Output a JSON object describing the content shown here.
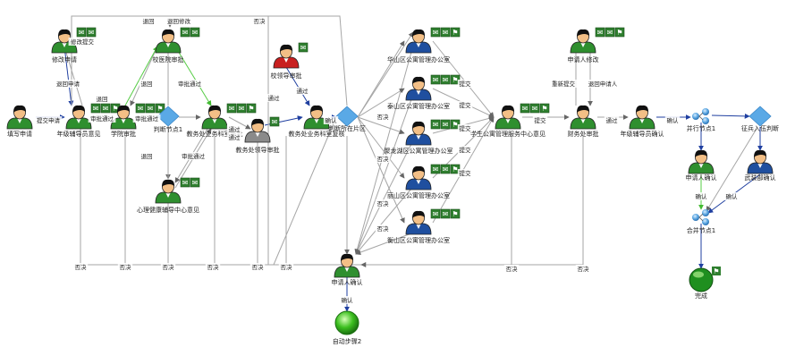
{
  "colors": {
    "edge": "#a6a6a6",
    "edge_green": "#55cc44",
    "edge_blue": "#1f3fa0",
    "skin": "#f3bf86",
    "hair": "#111111",
    "shirt_green": "#2f8f2f",
    "shirt_blue": "#1f4f9f",
    "shirt_red": "#c81f1f",
    "shirt_gray": "#8a8a8a",
    "diamond": "#5aa9e6",
    "badge": "#2f7f2f",
    "done_ball": "#1f8f1f",
    "text": "#222222"
  },
  "nodes": [
    {
      "id": "n_fill",
      "label": "填写申请",
      "icon": "person-green-icon",
      "badges": 0
    },
    {
      "id": "n_edit",
      "label": "修改申请",
      "icon": "person-green-icon",
      "badges": 2
    },
    {
      "id": "n_tutor",
      "label": "年级辅导员意见",
      "icon": "person-green-icon",
      "badges": 3
    },
    {
      "id": "n_college",
      "label": "学院审批",
      "icon": "person-green-icon",
      "badges": 3
    },
    {
      "id": "n_school",
      "label": "校医院审批",
      "icon": "person-green-icon",
      "badges": 2
    },
    {
      "id": "n_judge1",
      "label": "判断节点1",
      "icon": "decision-diamond-icon",
      "badges": 0
    },
    {
      "id": "n_edu",
      "label": "教务处业务科室审批",
      "icon": "person-green-icon",
      "badges": 3
    },
    {
      "id": "n_psy",
      "label": "心理健康辅导中心意见",
      "icon": "person-green-icon",
      "badges": 2
    },
    {
      "id": "n_eduleader",
      "label": "教务处领导审批",
      "icon": "person-gray-icon",
      "badges": 1
    },
    {
      "id": "n_schoolleader",
      "label": "校领导审批",
      "icon": "person-red-icon",
      "badges": 1
    },
    {
      "id": "n_edu2",
      "label": "教务处业务科室复核",
      "icon": "person-green-icon",
      "badges": 0
    },
    {
      "id": "n_judge_dorm",
      "label": "判断所在片区",
      "icon": "decision-diamond-icon",
      "badges": 0
    },
    {
      "id": "n_huashan",
      "label": "华山区公寓管理办公室",
      "icon": "person-blue-icon",
      "badges": 3
    },
    {
      "id": "n_taishan",
      "label": "泰山区公寓管理办公室",
      "icon": "person-blue-icon",
      "badges": 3
    },
    {
      "id": "n_julong",
      "label": "聚龙湖区公寓管理办公室",
      "icon": "person-blue-icon",
      "badges": 3
    },
    {
      "id": "n_lishan",
      "label": "丽山区公寓管理办公室",
      "icon": "person-blue-icon",
      "badges": 3
    },
    {
      "id": "n_hengshan",
      "label": "衡山区公寓管理办公室",
      "icon": "person-blue-icon",
      "badges": 3
    },
    {
      "id": "n_student_center",
      "label": "学生公寓管理服务中心意见",
      "icon": "person-green-icon",
      "badges": 3
    },
    {
      "id": "n_applicant_edit",
      "label": "申请人修改",
      "icon": "person-green-icon",
      "badges": 3
    },
    {
      "id": "n_finance",
      "label": "财务处审批",
      "icon": "person-green-icon",
      "badges": 0
    },
    {
      "id": "n_tutor_confirm",
      "label": "年级辅导员确认",
      "icon": "person-green-icon",
      "badges": 0
    },
    {
      "id": "n_parallel1",
      "label": "并行节点1",
      "icon": "parallel-node-icon",
      "badges": 0
    },
    {
      "id": "n_applicant_confirm2",
      "label": "申请人确认",
      "icon": "person-green-icon",
      "badges": 0
    },
    {
      "id": "n_check_armed",
      "label": "征兵入伍判断",
      "icon": "decision-diamond-icon",
      "badges": 0
    },
    {
      "id": "n_armed",
      "label": "武装部确认",
      "icon": "person-blue-icon",
      "badges": 0
    },
    {
      "id": "n_merge1",
      "label": "合并节点1",
      "icon": "merge-node-icon",
      "badges": 0
    },
    {
      "id": "n_done",
      "label": "完成",
      "icon": "finish-ball-icon",
      "badges": 1
    },
    {
      "id": "n_applicant_confirm",
      "label": "申请人确认",
      "icon": "person-green-icon",
      "badges": 0
    },
    {
      "id": "n_auto2",
      "label": "自动步骤2",
      "icon": "start-ball-icon",
      "badges": 0
    }
  ],
  "edge_labels": [
    {
      "id": "l_submit",
      "text": "提交申请"
    },
    {
      "id": "l_edit_submit",
      "text": "修改提交"
    },
    {
      "id": "l_return_apply",
      "text": "退回申请"
    },
    {
      "id": "l_top_return_edit",
      "text": "退回修改"
    },
    {
      "id": "l_top_return",
      "text": "退回"
    },
    {
      "id": "l_return1",
      "text": "退回"
    },
    {
      "id": "l_approve1",
      "text": "审批通过"
    },
    {
      "id": "l_approve2",
      "text": "审批通过"
    },
    {
      "id": "l_return2",
      "text": "退回"
    },
    {
      "id": "l_approve3",
      "text": "审批通过"
    },
    {
      "id": "l_pass1",
      "text": "通过"
    },
    {
      "id": "l_return3",
      "text": "退回"
    },
    {
      "id": "l_approve4",
      "text": "审批通过"
    },
    {
      "id": "l_pass2",
      "text": "通过"
    },
    {
      "id": "l_pass3",
      "text": "通过"
    },
    {
      "id": "l_pass4",
      "text": "通过"
    },
    {
      "id": "l_confirm1",
      "text": "确认"
    },
    {
      "id": "l_submit_a",
      "text": "提交"
    },
    {
      "id": "l_submit_b",
      "text": "提交"
    },
    {
      "id": "l_submit_c",
      "text": "提交"
    },
    {
      "id": "l_submit_d",
      "text": "提交"
    },
    {
      "id": "l_submit_e",
      "text": "提交"
    },
    {
      "id": "l_submit_f",
      "text": "提交"
    },
    {
      "id": "l_veto_top",
      "text": "否决"
    },
    {
      "id": "l_veto_a",
      "text": "否决"
    },
    {
      "id": "l_veto_b",
      "text": "否决"
    },
    {
      "id": "l_veto_c",
      "text": "否决"
    },
    {
      "id": "l_veto_d",
      "text": "否决"
    },
    {
      "id": "l_veto_e",
      "text": "否决"
    },
    {
      "id": "l_veto_f",
      "text": "否决"
    },
    {
      "id": "l_veto_g",
      "text": "否决"
    },
    {
      "id": "l_veto_h",
      "text": "否决"
    },
    {
      "id": "l_veto_i",
      "text": "否决"
    },
    {
      "id": "l_veto_j",
      "text": "否决"
    },
    {
      "id": "l_veto_k",
      "text": "否决"
    },
    {
      "id": "l_veto_l",
      "text": "否决"
    },
    {
      "id": "l_resubmit",
      "text": "重新提交"
    },
    {
      "id": "l_return_applicant",
      "text": "退回申请人"
    },
    {
      "id": "l_pass5",
      "text": "通过"
    },
    {
      "id": "l_confirm2",
      "text": "确认"
    },
    {
      "id": "l_confirm3",
      "text": "确认"
    },
    {
      "id": "l_confirm4",
      "text": "确认"
    },
    {
      "id": "l_confirm5",
      "text": "确认"
    }
  ]
}
